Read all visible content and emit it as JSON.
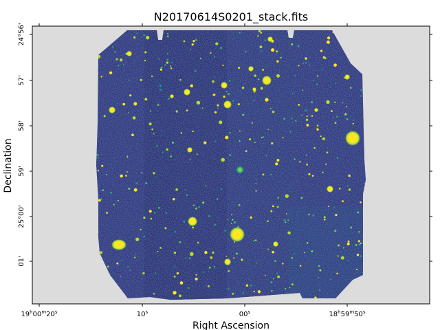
{
  "chart_data": {
    "type": "heatmap",
    "title": "N20170614S0201_stack.fits",
    "xlabel": "Right Ascension",
    "ylabel": "Declination",
    "colormap": "viridis",
    "background_color": "#dcdcdc",
    "x_ticks": [
      {
        "label": "19h00m20s"
      },
      {
        "label": "10s"
      },
      {
        "label": "00s"
      },
      {
        "label": "18h59m50s"
      }
    ],
    "y_ticks": [
      {
        "label": "24°56'"
      },
      {
        "label": "57'"
      },
      {
        "label": "58'"
      },
      {
        "label": "59'"
      },
      {
        "label": "25°00'"
      },
      {
        "label": "01'"
      }
    ]
  }
}
